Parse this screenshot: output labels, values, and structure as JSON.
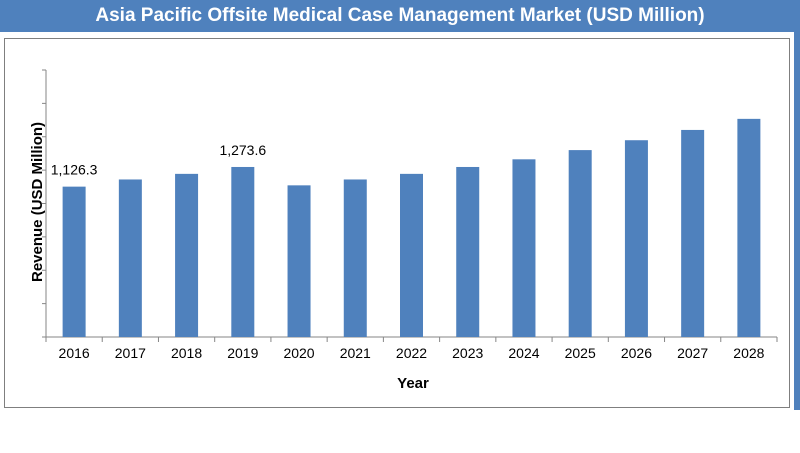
{
  "chart_data": {
    "type": "bar",
    "title": "Asia Pacific Offsite Medical Case Management Market (USD Million)",
    "xlabel": "Year",
    "ylabel": "Revenue (USD Million)",
    "categories": [
      "2016",
      "2017",
      "2018",
      "2019",
      "2020",
      "2021",
      "2022",
      "2023",
      "2024",
      "2025",
      "2026",
      "2027",
      "2028"
    ],
    "values": [
      1126.3,
      1180,
      1222,
      1273.6,
      1136,
      1180,
      1222,
      1273.6,
      1331,
      1400,
      1474,
      1551,
      1634
    ],
    "data_labels": [
      {
        "index": 0,
        "text": "1,126.3"
      },
      {
        "index": 3,
        "text": "1,273.6"
      }
    ],
    "ylim": [
      0,
      2000
    ],
    "grid": false,
    "bar_color": "#4F81BD",
    "legend": "none"
  }
}
